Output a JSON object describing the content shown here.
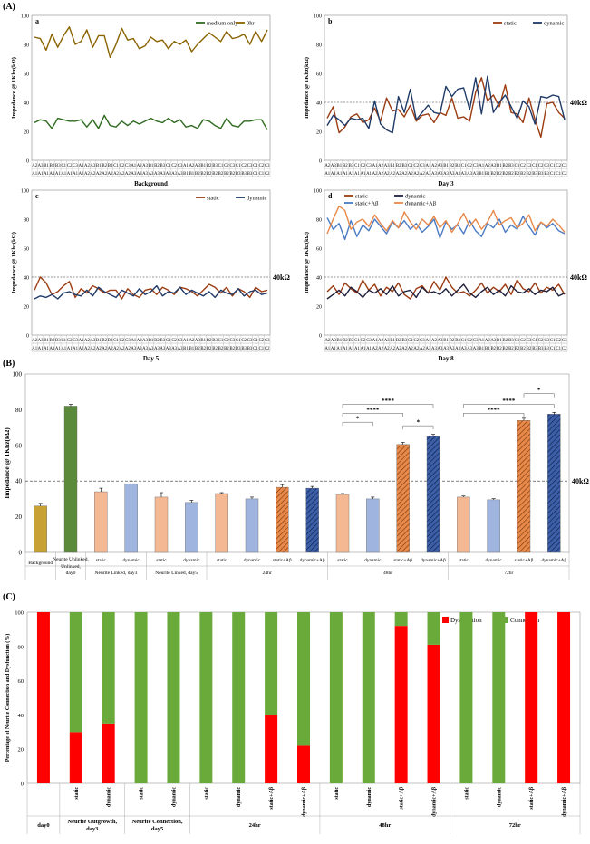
{
  "panelA": {
    "label": "(A)",
    "xticks": [
      "A2",
      "A3",
      "B1",
      "B2",
      "B3",
      "C1",
      "C2",
      "C3",
      "A1",
      "A2",
      "A3",
      "B1",
      "B2",
      "B3",
      "C1",
      "C2",
      "C3",
      "A1",
      "A2",
      "A3",
      "B1",
      "B2",
      "B3",
      "C1",
      "C2",
      "C3",
      "A1",
      "A2",
      "A3",
      "B1",
      "B2",
      "B3",
      "C1",
      "C2",
      "C3",
      "C1",
      "C2",
      "C3",
      "C1",
      "C2",
      "C3"
    ],
    "xsub": [
      "A1",
      "A1",
      "A1",
      "A1",
      "A1",
      "A1",
      "A1",
      "A1",
      "A2",
      "A2",
      "A2",
      "A2",
      "A2",
      "A2",
      "A2",
      "A2",
      "A2",
      "A3",
      "A3",
      "A3",
      "A3",
      "A3",
      "A3",
      "A3",
      "A3",
      "A3",
      "B1",
      "B1",
      "B2",
      "B2",
      "B2",
      "B2",
      "B2",
      "B2",
      "B2",
      "B3",
      "B3",
      "B3",
      "C1",
      "C1",
      "C2"
    ],
    "ylabel": "Impedance @ 1Khz(kΩ)",
    "threshold_label": "40kΩ",
    "subplots": [
      {
        "tag": "a",
        "xlabel": "Background",
        "ymax": 100,
        "ystep": 20,
        "threshold": null,
        "series": [
          {
            "name": "medium only",
            "color": "#2e6b1f",
            "values": [
              26,
              28,
              27,
              22,
              29,
              28,
              27,
              27,
              28,
              23,
              28,
              22,
              31,
              24,
              23,
              27,
              24,
              27,
              25,
              27,
              29,
              27,
              26,
              29,
              26,
              28,
              23,
              24,
              22,
              28,
              27,
              24,
              22,
              29,
              24,
              23,
              27,
              27,
              28,
              28,
              21
            ]
          },
          {
            "name": "0hr",
            "color": "#8a6200",
            "values": [
              85,
              84,
              76,
              87,
              78,
              86,
              92,
              80,
              82,
              90,
              78,
              86,
              86,
              71,
              80,
              91,
              83,
              84,
              77,
              79,
              85,
              82,
              83,
              77,
              82,
              80,
              83,
              75,
              80,
              84,
              88,
              85,
              82,
              89,
              84,
              85,
              87,
              80,
              89,
              82,
              90
            ]
          }
        ]
      },
      {
        "tag": "b",
        "xlabel": "Day 3",
        "ymax": 100,
        "ystep": 20,
        "threshold": 40,
        "series": [
          {
            "name": "static",
            "color": "#9c3c12",
            "values": [
              29,
              37,
              19,
              23,
              30,
              32,
              26,
              28,
              36,
              27,
              43,
              34,
              35,
              30,
              38,
              27,
              31,
              32,
              26,
              33,
              31,
              43,
              29,
              30,
              27,
              47,
              57,
              41,
              45,
              37,
              52,
              33,
              32,
              26,
              43,
              28,
              16,
              39,
              40,
              33,
              29
            ]
          },
          {
            "name": "dynamic",
            "color": "#1f3a68",
            "values": [
              24,
              31,
              28,
              24,
              29,
              28,
              29,
              22,
              41,
              25,
              21,
              19,
              44,
              33,
              49,
              28,
              33,
              38,
              33,
              32,
              51,
              44,
              49,
              50,
              35,
              57,
              32,
              58,
              33,
              40,
              45,
              37,
              29,
              41,
              37,
              25,
              44,
              43,
              45,
              44,
              28
            ]
          }
        ]
      },
      {
        "tag": "c",
        "xlabel": "Day 5",
        "ymax": 100,
        "ystep": 20,
        "threshold": 40,
        "series": [
          {
            "name": "static",
            "color": "#9c3c12",
            "values": [
              31,
              40,
              36,
              28,
              30,
              34,
              37,
              26,
              32,
              29,
              34,
              32,
              29,
              31,
              31,
              25,
              32,
              28,
              26,
              31,
              32,
              28,
              33,
              31,
              28,
              33,
              32,
              30,
              27,
              31,
              35,
              33,
              29,
              33,
              27,
              32,
              30,
              26,
              33,
              30,
              31
            ]
          },
          {
            "name": "dynamic",
            "color": "#1f3a68",
            "values": [
              25,
              27,
              26,
              28,
              25,
              29,
              30,
              28,
              27,
              31,
              27,
              33,
              30,
              28,
              26,
              31,
              29,
              27,
              32,
              28,
              30,
              34,
              27,
              30,
              29,
              33,
              28,
              31,
              29,
              27,
              30,
              26,
              31,
              29,
              28,
              32,
              27,
              30,
              31,
              28,
              29
            ]
          }
        ]
      },
      {
        "tag": "d",
        "xlabel": "Day 8",
        "ymax": 100,
        "ystep": 20,
        "threshold": 40,
        "series": [
          {
            "name": "static",
            "color": "#9c3c12",
            "values": [
              30,
              34,
              28,
              36,
              32,
              29,
              38,
              31,
              35,
              27,
              33,
              30,
              36,
              28,
              25,
              32,
              34,
              29,
              37,
              31,
              40,
              33,
              29,
              30,
              27,
              31,
              36,
              29,
              33,
              30,
              35,
              28,
              38,
              32,
              30,
              36,
              29,
              33,
              31,
              35,
              28
            ]
          },
          {
            "name": "dynamic",
            "color": "#1f1f3c",
            "values": [
              25,
              28,
              31,
              27,
              33,
              30,
              26,
              31,
              29,
              32,
              28,
              34,
              27,
              30,
              31,
              26,
              33,
              29,
              30,
              28,
              32,
              27,
              31,
              35,
              29,
              26,
              30,
              33,
              28,
              31,
              27,
              34,
              30,
              29,
              32,
              28,
              31,
              30,
              33,
              27,
              29
            ]
          },
          {
            "name": "static+Aβ",
            "color": "#4a7bc4",
            "values": [
              81,
              73,
              77,
              66,
              79,
              68,
              76,
              72,
              80,
              75,
              70,
              78,
              74,
              79,
              73,
              77,
              71,
              75,
              80,
              67,
              78,
              73,
              76,
              70,
              79,
              72,
              68,
              77,
              74,
              80,
              71,
              76,
              73,
              82,
              75,
              69,
              78,
              74,
              77,
              72,
              70
            ]
          },
          {
            "name": "dynamic+Aβ",
            "color": "#e8894a",
            "values": [
              70,
              80,
              89,
              86,
              73,
              78,
              80,
              75,
              83,
              77,
              72,
              79,
              74,
              85,
              78,
              73,
              80,
              76,
              82,
              74,
              79,
              71,
              77,
              84,
              75,
              80,
              73,
              78,
              86,
              76,
              79,
              81,
              74,
              77,
              83,
              72,
              78,
              75,
              80,
              76,
              71
            ]
          }
        ]
      }
    ]
  },
  "panelB": {
    "label": "(B)",
    "ylabel": "Impedance @ 1Khz(kΩ)",
    "threshold_label": "40kΩ",
    "chart_data": {
      "type": "bar",
      "ylim": [
        0,
        100
      ],
      "threshold": 40,
      "bars": [
        {
          "label": "Background",
          "group": "Background",
          "value": 26,
          "err": 1.5,
          "color": "#c8a135",
          "hatch": false
        },
        {
          "label": "Neurite Unlinked, day0",
          "group": "Neurite Unlinked, day0",
          "value": 82,
          "err": 1,
          "color": "#5a8a3a",
          "hatch": false
        },
        {
          "label": "static",
          "group": "Neurite Linked, day3",
          "value": 34,
          "err": 2,
          "color": "#f4b893",
          "hatch": false
        },
        {
          "label": "dynamic",
          "group": "Neurite Linked, day3",
          "value": 38.5,
          "err": 1.5,
          "color": "#9fb5e0",
          "hatch": false
        },
        {
          "label": "static",
          "group": "Neurite Linked, day5",
          "value": 31,
          "err": 2.5,
          "color": "#f4b893",
          "hatch": false
        },
        {
          "label": "dynamic",
          "group": "Neurite Linked, day5",
          "value": 28,
          "err": 1.2,
          "color": "#9fb5e0",
          "hatch": false
        },
        {
          "label": "static",
          "group": "24hr",
          "value": 33,
          "err": 0.5,
          "color": "#f4b893",
          "hatch": false
        },
        {
          "label": "dynamic",
          "group": "24hr",
          "value": 30,
          "err": 1,
          "color": "#9fb5e0",
          "hatch": false
        },
        {
          "label": "static+Aβ",
          "group": "24hr",
          "value": 36.5,
          "err": 1.5,
          "color": "#e8894a",
          "hatch": true
        },
        {
          "label": "dynamic+Aβ",
          "group": "24hr",
          "value": 36,
          "err": 1,
          "color": "#3c5fa8",
          "hatch": true
        },
        {
          "label": "static",
          "group": "48hr",
          "value": 32.5,
          "err": 0.5,
          "color": "#f4b893",
          "hatch": false
        },
        {
          "label": "dynamic",
          "group": "48hr",
          "value": 30,
          "err": 1,
          "color": "#9fb5e0",
          "hatch": false
        },
        {
          "label": "static+Aβ",
          "group": "48hr",
          "value": 60.5,
          "err": 1.2,
          "color": "#e8894a",
          "hatch": true
        },
        {
          "label": "dynamic+Aβ",
          "group": "48hr",
          "value": 65,
          "err": 1.2,
          "color": "#3c5fa8",
          "hatch": true
        },
        {
          "label": "static",
          "group": "72hr",
          "value": 31,
          "err": 0.6,
          "color": "#f4b893",
          "hatch": false
        },
        {
          "label": "dynamic",
          "group": "72hr",
          "value": 29.5,
          "err": 0.6,
          "color": "#9fb5e0",
          "hatch": false
        },
        {
          "label": "static+Aβ",
          "group": "72hr",
          "value": 74,
          "err": 1.2,
          "color": "#e8894a",
          "hatch": true
        },
        {
          "label": "dynamic+Aβ",
          "group": "72hr",
          "value": 77.5,
          "err": 1,
          "color": "#3c5fa8",
          "hatch": true
        }
      ],
      "groups": [
        {
          "name": "Background",
          "span": [
            0,
            0
          ]
        },
        {
          "name": "Neurite Unlinked, day0",
          "span": [
            1,
            1
          ]
        },
        {
          "name": "Neurite Linked, day3",
          "span": [
            2,
            3
          ]
        },
        {
          "name": "Neurite Linked, day5",
          "span": [
            4,
            5
          ]
        },
        {
          "name": "24hr",
          "span": [
            6,
            9
          ]
        },
        {
          "name": "48hr",
          "span": [
            10,
            13
          ]
        },
        {
          "name": "72hr",
          "span": [
            14,
            17
          ]
        }
      ],
      "significance": [
        {
          "from": 10,
          "to": 13,
          "y": 83,
          "text": "****"
        },
        {
          "from": 12,
          "to": 13,
          "y": 71,
          "text": "*"
        },
        {
          "from": 10,
          "to": 12,
          "y": 78,
          "text": "****"
        },
        {
          "from": 10,
          "to": 11,
          "y": 73,
          "text": "*"
        },
        {
          "from": 14,
          "to": 16,
          "y": 78,
          "text": "****"
        },
        {
          "from": 14,
          "to": 17,
          "y": 83,
          "text": "****"
        },
        {
          "from": 16,
          "to": 17,
          "y": 89,
          "text": "*"
        }
      ]
    }
  },
  "panelC": {
    "label": "(C)",
    "ylabel": "Percentage of Neurite Connection and Dysfunction  (%)",
    "chart_data": {
      "type": "bar",
      "stacked": true,
      "ylim": [
        0,
        100
      ],
      "legend": [
        {
          "name": "Dysfunction",
          "color": "#ff0000"
        },
        {
          "name": "Connection",
          "color": "#6aaa3a"
        }
      ],
      "bars": [
        {
          "label": "",
          "group": "day0",
          "dysfunction": 100
        },
        {
          "label": "static",
          "group": "Neurite Outgrowth, day3",
          "dysfunction": 30
        },
        {
          "label": "dynamic",
          "group": "Neurite Outgrowth, day3",
          "dysfunction": 35
        },
        {
          "label": "static",
          "group": "Neurite Connection, day5",
          "dysfunction": 0
        },
        {
          "label": "dynamic",
          "group": "Neurite Connection, day5",
          "dysfunction": 0
        },
        {
          "label": "static",
          "group": "24hr",
          "dysfunction": 0
        },
        {
          "label": "dynamic",
          "group": "24hr",
          "dysfunction": 0
        },
        {
          "label": "static+Aβ",
          "group": "24hr",
          "dysfunction": 40
        },
        {
          "label": "dynamic+Aβ",
          "group": "24hr",
          "dysfunction": 22
        },
        {
          "label": "static",
          "group": "48hr",
          "dysfunction": 0
        },
        {
          "label": "dynamic",
          "group": "48hr",
          "dysfunction": 0
        },
        {
          "label": "static+Aβ",
          "group": "48hr",
          "dysfunction": 92
        },
        {
          "label": "dynamic+Aβ",
          "group": "48hr",
          "dysfunction": 81
        },
        {
          "label": "static",
          "group": "72hr",
          "dysfunction": 0
        },
        {
          "label": "dynamic",
          "group": "72hr",
          "dysfunction": 0
        },
        {
          "label": "static+Aβ",
          "group": "72hr",
          "dysfunction": 100
        },
        {
          "label": "dynamic+Aβ",
          "group": "72hr",
          "dysfunction": 100
        }
      ],
      "groups": [
        {
          "name": "day0",
          "span": [
            0,
            0
          ]
        },
        {
          "name": "Neurite Outgrowth, day3",
          "span": [
            1,
            2
          ]
        },
        {
          "name": "Neurite Connection, day5",
          "span": [
            3,
            4
          ]
        },
        {
          "name": "24hr",
          "span": [
            5,
            8
          ]
        },
        {
          "name": "48hr",
          "span": [
            9,
            12
          ]
        },
        {
          "name": "72hr",
          "span": [
            13,
            16
          ]
        }
      ]
    }
  }
}
